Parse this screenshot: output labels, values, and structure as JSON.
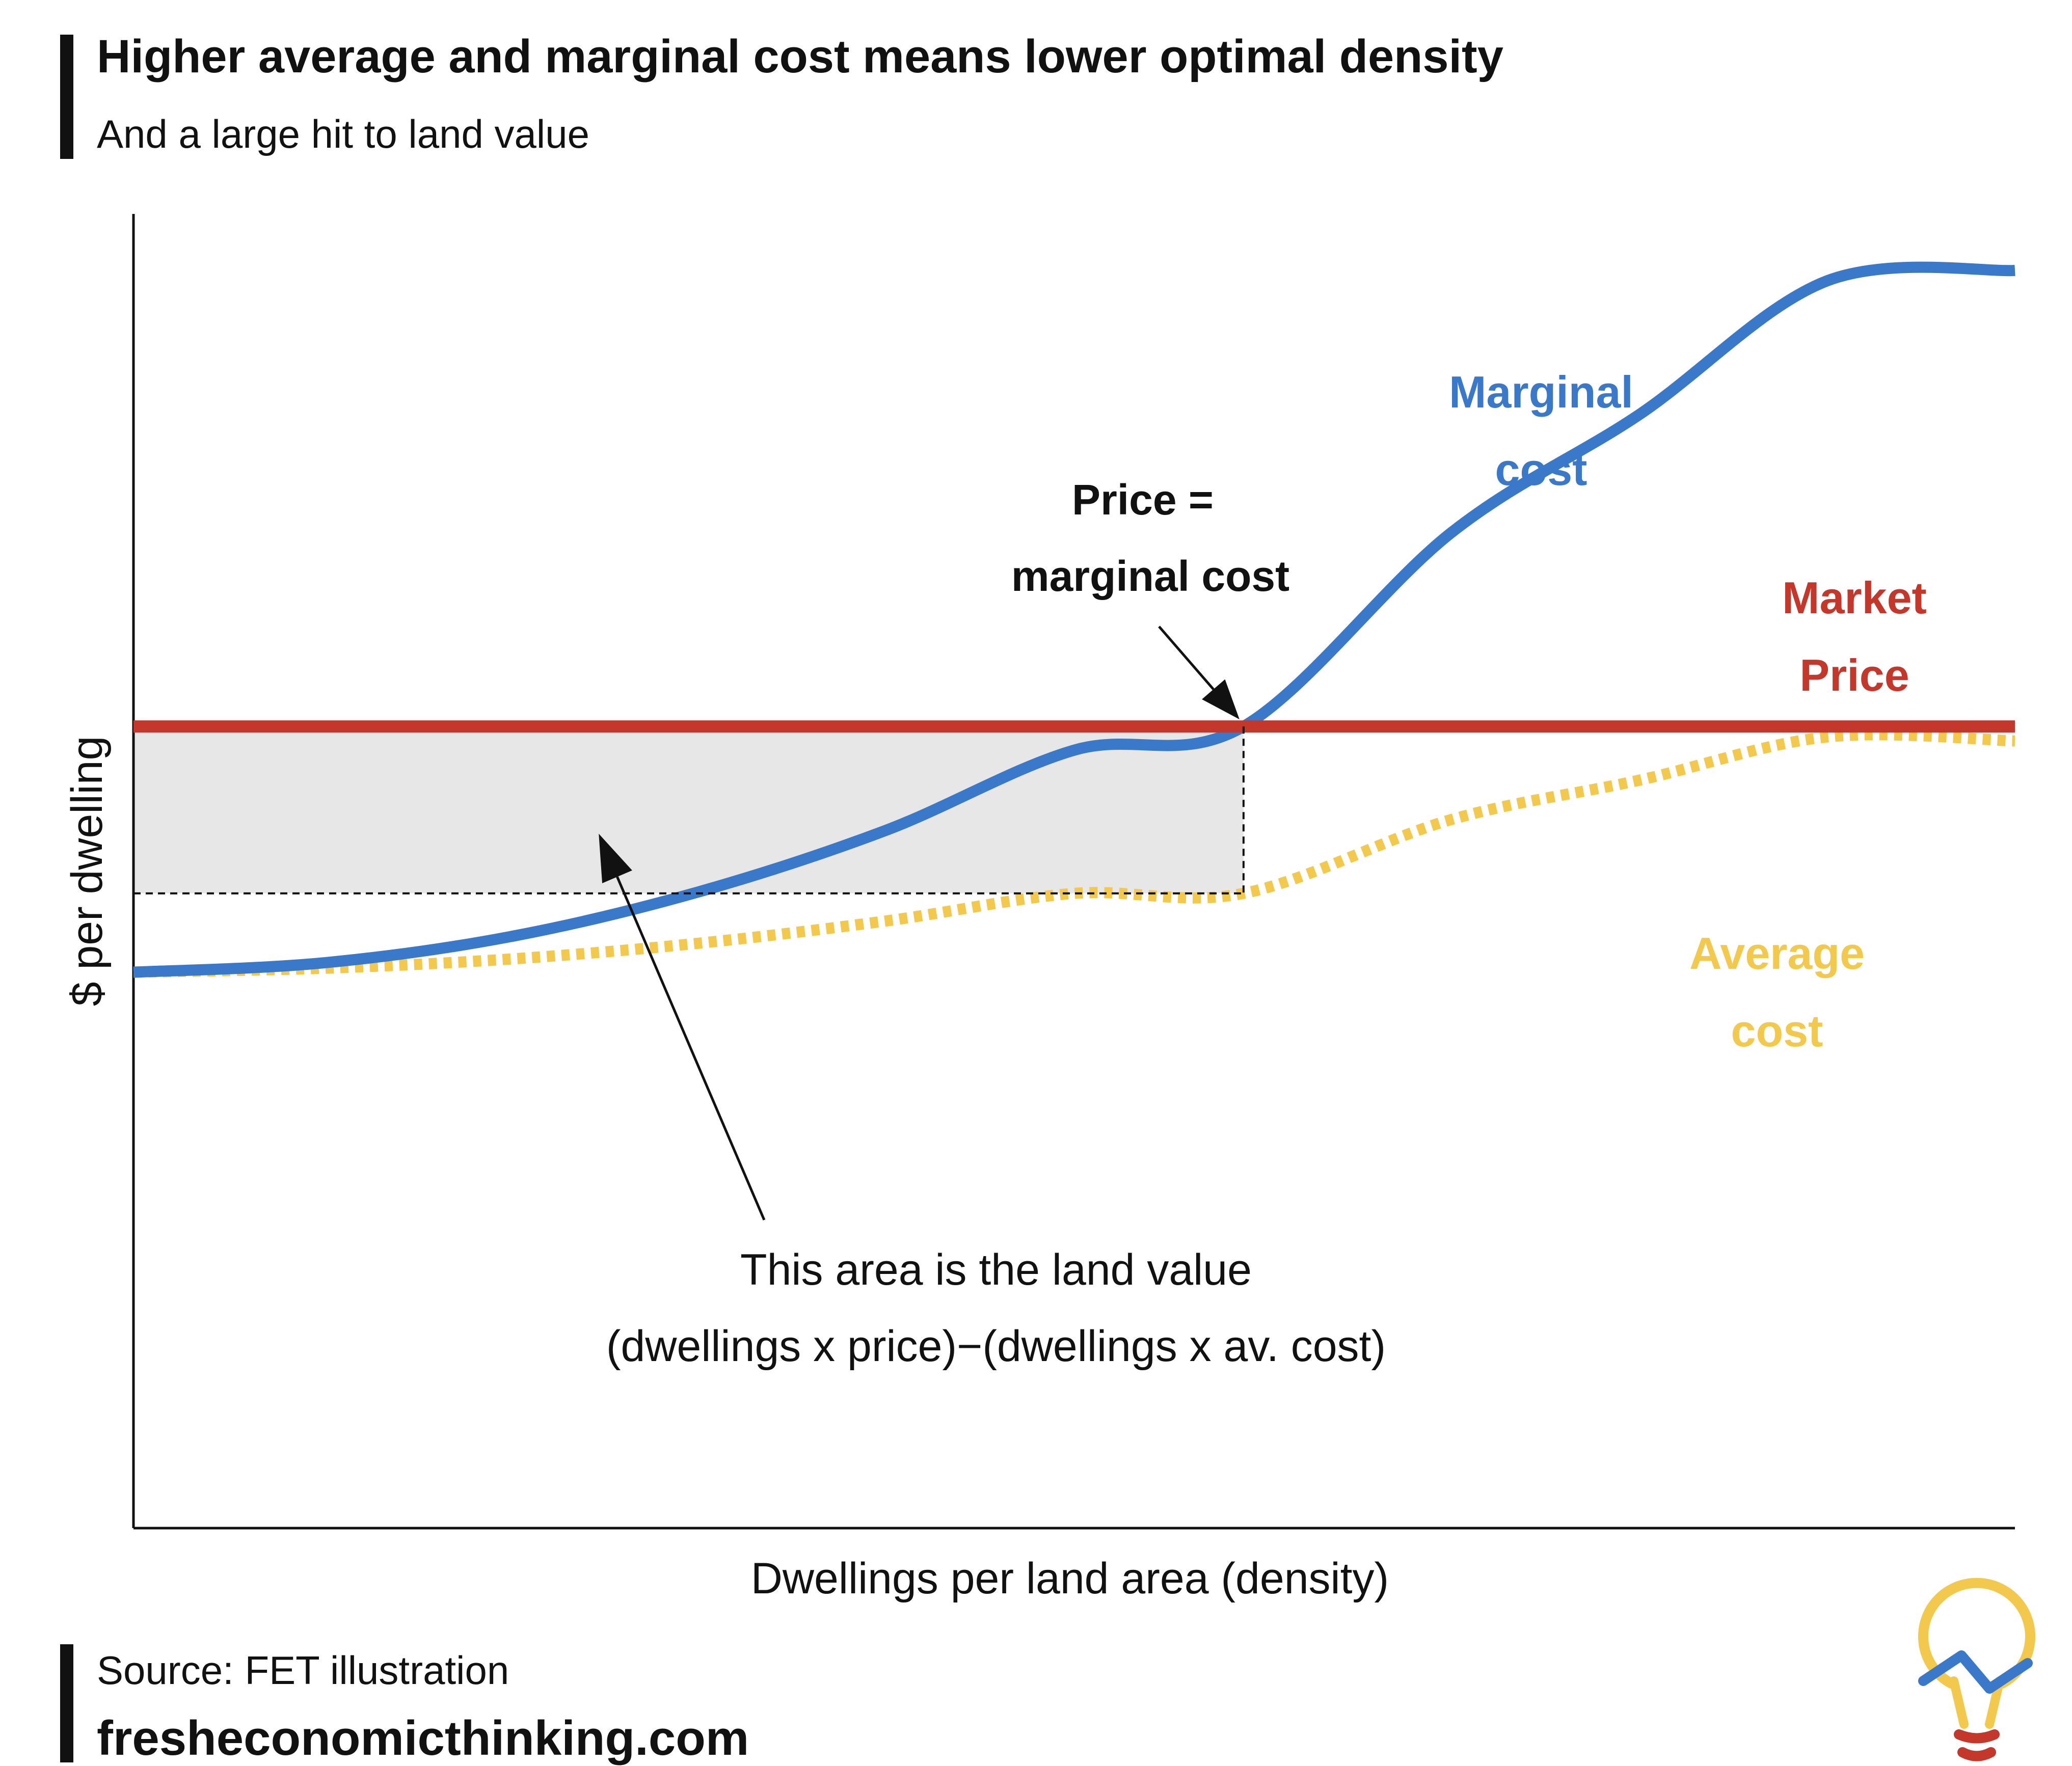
{
  "header": {
    "title": "Higher average and marginal cost means lower optimal density",
    "subtitle": "And a large hit to land value"
  },
  "footer": {
    "source": "Source: FET illustration",
    "website": "fresheconomicthinking.com",
    "logo_icon": "lightbulb-chart-logo-icon"
  },
  "colors": {
    "marginal": "#3a78c9",
    "price": "#c4372b",
    "average": "#f2c94c",
    "area": "#e7e7e7",
    "text": "#111111"
  },
  "chart_data": {
    "type": "line",
    "title": "Higher average and marginal cost means lower optimal density",
    "subtitle": "And a large hit to land value",
    "xlabel": "Dwellings per land area (density)",
    "ylabel": "$ per dwelling",
    "xlim": [
      0,
      100
    ],
    "ylim": [
      0,
      100
    ],
    "grid": false,
    "ticks_shown": false,
    "series": [
      {
        "name": "Marginal cost",
        "label_lines": [
          "Marginal",
          "cost"
        ],
        "style": "solid",
        "color": "#3a78c9",
        "x": [
          0,
          10,
          20,
          30,
          40,
          50,
          59,
          70,
          80,
          90,
          100
        ],
        "y": [
          42.3,
          43.0,
          45.0,
          48.4,
          53.1,
          59.2,
          61.0,
          75.7,
          84.7,
          94.9,
          95.7
        ]
      },
      {
        "name": "Market Price",
        "label_lines": [
          "Market",
          "Price"
        ],
        "style": "solid",
        "color": "#c4372b",
        "x": [
          0,
          100
        ],
        "y": [
          61.0,
          61.0
        ]
      },
      {
        "name": "Average cost",
        "label_lines": [
          "Average",
          "cost"
        ],
        "style": "dotted",
        "color": "#f2c94c",
        "x": [
          0,
          10,
          20,
          30,
          40,
          50,
          59,
          70,
          80,
          90,
          100
        ],
        "y": [
          42.3,
          42.6,
          43.3,
          44.5,
          46.2,
          48.3,
          48.3,
          53.9,
          56.9,
          60.2,
          59.9
        ]
      }
    ],
    "shaded_area": {
      "x_range": [
        0,
        59
      ],
      "y_range": [
        48.3,
        61.0
      ],
      "meaning": "land value"
    },
    "optimum": {
      "x": 59,
      "y_price": 61.0,
      "y_avg_cost": 48.3
    },
    "annotations": [
      {
        "id": "price-equals-mc",
        "lines": [
          "Price =",
          "marginal cost"
        ],
        "points_to": {
          "x": 59,
          "y": 61.0
        },
        "text_at": {
          "x": 54.3,
          "y": 72.5
        }
      },
      {
        "id": "land-value",
        "lines": [
          "This area is the land value",
          "(dwellings x price)−(dwellings x av. cost)"
        ],
        "points_to": {
          "x": 25,
          "y": 54.0
        },
        "text_at": {
          "x": 33,
          "y": 24.3
        }
      }
    ]
  }
}
